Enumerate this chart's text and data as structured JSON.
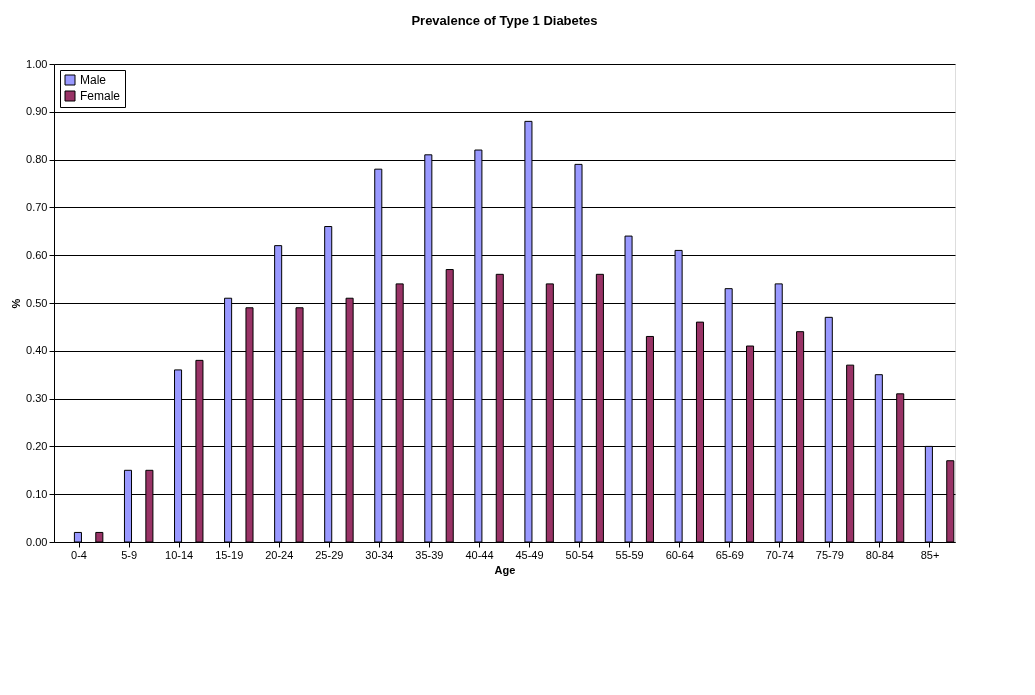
{
  "chart_data": {
    "type": "bar",
    "title": "Prevalence of Type 1 Diabetes",
    "xlabel": "Age",
    "ylabel": "%",
    "categories": [
      "0-4",
      "5-9",
      "10-14",
      "15-19",
      "20-24",
      "25-29",
      "30-34",
      "35-39",
      "40-44",
      "45-49",
      "50-54",
      "55-59",
      "60-64",
      "65-69",
      "70-74",
      "75-79",
      "80-84",
      "85+"
    ],
    "series": [
      {
        "name": "Male",
        "color": "#9999ff",
        "values": [
          0.02,
          0.15,
          0.36,
          0.51,
          0.62,
          0.66,
          0.78,
          0.81,
          0.82,
          0.88,
          0.79,
          0.64,
          0.61,
          0.53,
          0.54,
          0.47,
          0.35,
          0.2
        ]
      },
      {
        "name": "Female",
        "color": "#993366",
        "values": [
          0.02,
          0.15,
          0.38,
          0.49,
          0.49,
          0.51,
          0.54,
          0.57,
          0.56,
          0.54,
          0.56,
          0.43,
          0.46,
          0.41,
          0.44,
          0.37,
          0.31,
          0.17
        ]
      }
    ],
    "ylim": [
      0,
      1
    ],
    "yticks": [
      {
        "value": 0,
        "label": "0.00"
      },
      {
        "value": 0.1,
        "label": "0.10"
      },
      {
        "value": 0.2,
        "label": "0.20"
      },
      {
        "value": 0.3,
        "label": "0.30"
      },
      {
        "value": 0.4,
        "label": "0.40"
      },
      {
        "value": 0.5,
        "label": "0.50"
      },
      {
        "value": 0.6,
        "label": "0.60"
      },
      {
        "value": 0.7,
        "label": "0.70"
      },
      {
        "value": 0.8,
        "label": "0.80"
      },
      {
        "value": 0.9,
        "label": "0.90"
      },
      {
        "value": 1,
        "label": "1.00"
      }
    ],
    "grid": "y",
    "legend": "top left"
  }
}
